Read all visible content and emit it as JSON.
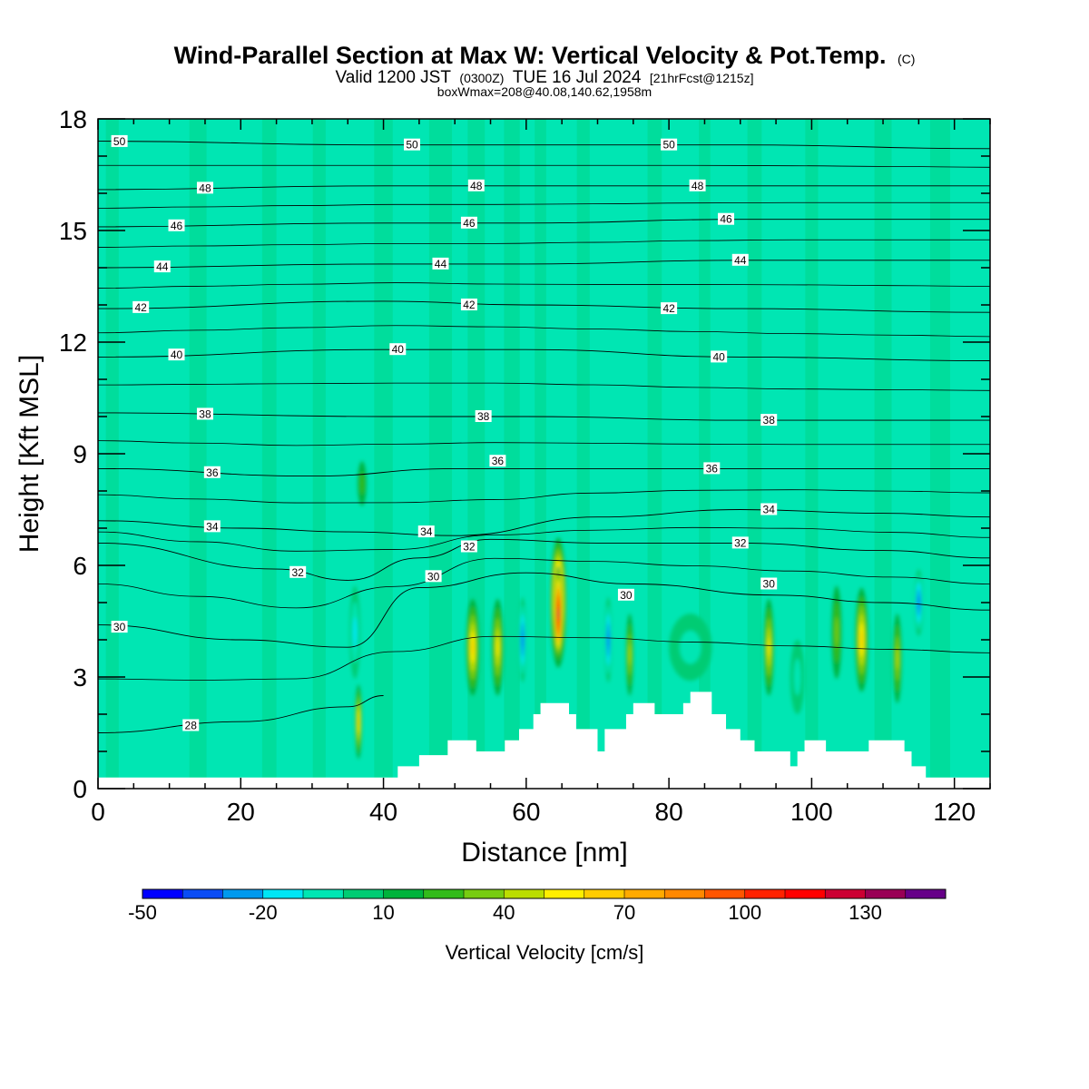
{
  "header": {
    "title": "Wind-Parallel Section at Max W: Vertical Velocity & Pot.Temp.",
    "title_mark": "(C)",
    "valid_prefix": "Valid 1200 JST",
    "valid_utc": "(0300Z)",
    "valid_date": "TUE 16 Jul 2024",
    "forecast": "[21hrFcst@1215z]",
    "box_info": "boxWmax=208@40.08,140.62,1958m"
  },
  "chart_data": {
    "type": "heatmap",
    "xlabel": "Distance [nm]",
    "ylabel": "Height [Kft MSL]",
    "xlim": [
      0,
      125
    ],
    "ylim": [
      0,
      18
    ],
    "x_ticks": [
      "0",
      "20",
      "40",
      "60",
      "80",
      "100",
      "120"
    ],
    "y_ticks": [
      "0",
      "3",
      "6",
      "9",
      "12",
      "15",
      "18"
    ],
    "background_color": "#00e6b3",
    "terrain_kft": [
      [
        0,
        0.3
      ],
      [
        36,
        0.3
      ],
      [
        40,
        0.3
      ],
      [
        42,
        0.3
      ],
      [
        42,
        0.6
      ],
      [
        45,
        0.6
      ],
      [
        45,
        0.9
      ],
      [
        49,
        0.9
      ],
      [
        49,
        1.3
      ],
      [
        53,
        1.3
      ],
      [
        53,
        1.0
      ],
      [
        57,
        1.0
      ],
      [
        57,
        1.3
      ],
      [
        59,
        1.3
      ],
      [
        59,
        1.6
      ],
      [
        61,
        1.6
      ],
      [
        61,
        2.0
      ],
      [
        62,
        2.0
      ],
      [
        62,
        2.3
      ],
      [
        66,
        2.3
      ],
      [
        66,
        2.0
      ],
      [
        67,
        2.0
      ],
      [
        67,
        1.6
      ],
      [
        70,
        1.6
      ],
      [
        70,
        1.0
      ],
      [
        71,
        1.0
      ],
      [
        71,
        1.6
      ],
      [
        74,
        1.6
      ],
      [
        74,
        2.0
      ],
      [
        75,
        2.0
      ],
      [
        75,
        2.3
      ],
      [
        78,
        2.3
      ],
      [
        78,
        2.0
      ],
      [
        82,
        2.0
      ],
      [
        82,
        2.3
      ],
      [
        83,
        2.3
      ],
      [
        83,
        2.6
      ],
      [
        86,
        2.6
      ],
      [
        86,
        2.0
      ],
      [
        88,
        2.0
      ],
      [
        88,
        1.6
      ],
      [
        90,
        1.6
      ],
      [
        90,
        1.3
      ],
      [
        92,
        1.3
      ],
      [
        92,
        1.0
      ],
      [
        97,
        1.0
      ],
      [
        97,
        0.6
      ],
      [
        98,
        0.6
      ],
      [
        98,
        1.0
      ],
      [
        99,
        1.0
      ],
      [
        99,
        1.3
      ],
      [
        102,
        1.3
      ],
      [
        102,
        1.0
      ],
      [
        108,
        1.0
      ],
      [
        108,
        1.3
      ],
      [
        113,
        1.3
      ],
      [
        113,
        1.0
      ],
      [
        114,
        1.0
      ],
      [
        114,
        0.6
      ],
      [
        116,
        0.6
      ],
      [
        116,
        0.3
      ],
      [
        125,
        0.3
      ]
    ],
    "velocity_features": [
      {
        "x": 64.5,
        "y": 5.0,
        "w": 2.2,
        "h": 3.5,
        "w_cms": 100
      },
      {
        "x": 64.5,
        "y": 4.7,
        "w": 1.2,
        "h": 2.6,
        "w_cms": 120
      },
      {
        "x": 52.5,
        "y": 3.8,
        "w": 1.8,
        "h": 2.6,
        "w_cms": 45
      },
      {
        "x": 56.0,
        "y": 3.8,
        "w": 1.6,
        "h": 2.6,
        "w_cms": 40
      },
      {
        "x": 107.0,
        "y": 4.0,
        "w": 1.8,
        "h": 2.8,
        "w_cms": 50
      },
      {
        "x": 103.5,
        "y": 4.2,
        "w": 1.4,
        "h": 2.5,
        "w_cms": 20
      },
      {
        "x": 94.0,
        "y": 3.8,
        "w": 1.4,
        "h": 2.6,
        "w_cms": 40
      },
      {
        "x": 112.0,
        "y": 3.5,
        "w": 1.2,
        "h": 2.4,
        "w_cms": 30
      },
      {
        "x": 74.5,
        "y": 3.6,
        "w": 1.0,
        "h": 2.2,
        "w_cms": 25
      },
      {
        "x": 36.5,
        "y": 1.8,
        "w": 0.9,
        "h": 2.0,
        "w_cms": 45
      },
      {
        "x": 59.5,
        "y": 4.0,
        "w": 1.0,
        "h": 2.3,
        "w_cms": -40
      },
      {
        "x": 71.5,
        "y": 4.0,
        "w": 1.0,
        "h": 2.3,
        "w_cms": -40
      },
      {
        "x": 115.0,
        "y": 5.0,
        "w": 1.2,
        "h": 1.8,
        "w_cms": -35
      },
      {
        "x": 36.0,
        "y": 4.2,
        "w": 1.5,
        "h": 2.5,
        "w_cms": -15
      },
      {
        "x": 83.0,
        "y": 3.8,
        "w": 6.0,
        "h": 1.8,
        "w_cms": -12
      },
      {
        "x": 98.0,
        "y": 3.0,
        "w": 2.0,
        "h": 2.0,
        "w_cms": -12
      },
      {
        "x": 37.0,
        "y": 8.2,
        "w": 1.2,
        "h": 1.2,
        "w_cms": 10
      }
    ],
    "theta_contours": [
      {
        "label": "28",
        "pts": [
          [
            0,
            1.5
          ],
          [
            20,
            1.8
          ],
          [
            35,
            2.2
          ],
          [
            40,
            2.5
          ]
        ],
        "label_x": 13
      },
      {
        "label": "30",
        "pts": [
          [
            0,
            4.4
          ],
          [
            20,
            4.0
          ],
          [
            35,
            3.8
          ],
          [
            45,
            5.4
          ],
          [
            60,
            5.8
          ],
          [
            75,
            5.5
          ],
          [
            95,
            5.2
          ],
          [
            110,
            5.0
          ],
          [
            125,
            4.8
          ]
        ],
        "label_x": 3
      },
      {
        "label": "32",
        "pts": [
          [
            0,
            6.6
          ],
          [
            25,
            5.9
          ],
          [
            35,
            5.6
          ],
          [
            45,
            6.2
          ],
          [
            55,
            6.7
          ],
          [
            70,
            6.6
          ],
          [
            90,
            6.6
          ],
          [
            110,
            6.4
          ],
          [
            125,
            6.2
          ]
        ],
        "label_x": 28
      },
      {
        "label": "34",
        "pts": [
          [
            0,
            7.2
          ],
          [
            20,
            7.0
          ],
          [
            35,
            6.9
          ],
          [
            50,
            6.8
          ],
          [
            70,
            7.3
          ],
          [
            90,
            7.5
          ],
          [
            110,
            7.4
          ],
          [
            125,
            7.3
          ]
        ],
        "label_x": 16
      },
      {
        "label": "36",
        "pts": [
          [
            0,
            8.6
          ],
          [
            30,
            8.4
          ],
          [
            50,
            8.6
          ],
          [
            70,
            8.6
          ],
          [
            90,
            8.6
          ],
          [
            110,
            8.6
          ],
          [
            125,
            8.6
          ]
        ],
        "label_x": 16
      },
      {
        "label": "38",
        "pts": [
          [
            0,
            10.1
          ],
          [
            40,
            10.0
          ],
          [
            60,
            10.0
          ],
          [
            90,
            9.9
          ],
          [
            125,
            9.9
          ]
        ],
        "label_x": 15
      },
      {
        "label": "40",
        "pts": [
          [
            0,
            11.6
          ],
          [
            40,
            11.8
          ],
          [
            60,
            11.8
          ],
          [
            90,
            11.6
          ],
          [
            125,
            11.5
          ]
        ],
        "label_x": 11
      },
      {
        "label": "42",
        "pts": [
          [
            0,
            12.9
          ],
          [
            40,
            13.1
          ],
          [
            60,
            13.0
          ],
          [
            90,
            12.9
          ],
          [
            125,
            12.8
          ]
        ],
        "label_x": 6
      },
      {
        "label": "44",
        "pts": [
          [
            0,
            14.0
          ],
          [
            40,
            14.1
          ],
          [
            60,
            14.1
          ],
          [
            90,
            14.2
          ],
          [
            125,
            14.2
          ]
        ],
        "label_x": 9
      },
      {
        "label": "46",
        "pts": [
          [
            0,
            15.1
          ],
          [
            40,
            15.2
          ],
          [
            60,
            15.2
          ],
          [
            90,
            15.3
          ],
          [
            125,
            15.3
          ]
        ],
        "label_x": 11
      },
      {
        "label": "48",
        "pts": [
          [
            0,
            16.1
          ],
          [
            40,
            16.2
          ],
          [
            60,
            16.2
          ],
          [
            90,
            16.2
          ],
          [
            125,
            16.2
          ]
        ],
        "label_x": 15
      },
      {
        "label": "50",
        "pts": [
          [
            0,
            17.4
          ],
          [
            40,
            17.3
          ],
          [
            60,
            17.3
          ],
          [
            90,
            17.3
          ],
          [
            125,
            17.2
          ]
        ],
        "label_x": 3
      }
    ],
    "extra_labels": [
      {
        "label": "50",
        "x": 44,
        "y": 17.3
      },
      {
        "label": "50",
        "x": 80,
        "y": 17.3
      },
      {
        "label": "48",
        "x": 53,
        "y": 16.2
      },
      {
        "label": "48",
        "x": 84,
        "y": 16.2
      },
      {
        "label": "46",
        "x": 52,
        "y": 15.2
      },
      {
        "label": "46",
        "x": 88,
        "y": 15.3
      },
      {
        "label": "44",
        "x": 48,
        "y": 14.1
      },
      {
        "label": "44",
        "x": 90,
        "y": 14.2
      },
      {
        "label": "42",
        "x": 52,
        "y": 13.0
      },
      {
        "label": "42",
        "x": 80,
        "y": 12.9
      },
      {
        "label": "40",
        "x": 42,
        "y": 11.8
      },
      {
        "label": "40",
        "x": 87,
        "y": 11.6
      },
      {
        "label": "38",
        "x": 54,
        "y": 10.0
      },
      {
        "label": "38",
        "x": 94,
        "y": 9.9
      },
      {
        "label": "36",
        "x": 56,
        "y": 8.8
      },
      {
        "label": "36",
        "x": 86,
        "y": 8.6
      },
      {
        "label": "34",
        "x": 46,
        "y": 6.9
      },
      {
        "label": "34",
        "x": 94,
        "y": 7.5
      },
      {
        "label": "32",
        "x": 52,
        "y": 6.5
      },
      {
        "label": "32",
        "x": 90,
        "y": 6.6
      },
      {
        "label": "30",
        "x": 47,
        "y": 5.7
      },
      {
        "label": "30",
        "x": 74,
        "y": 5.2
      },
      {
        "label": "30",
        "x": 94,
        "y": 5.5
      }
    ]
  },
  "colorbar": {
    "title": "Vertical Velocity [cm/s]",
    "tick_labels": [
      "-50",
      "-20",
      "10",
      "40",
      "70",
      "100",
      "130"
    ],
    "colors": [
      "#0000ff",
      "#0a4cf5",
      "#0099ee",
      "#00e6f5",
      "#00e6b3",
      "#00cc73",
      "#00b33c",
      "#33bb1a",
      "#77cc11",
      "#bbdd00",
      "#ffee00",
      "#ffcc00",
      "#ffaa00",
      "#ff8800",
      "#ff5500",
      "#ff2200",
      "#ff0000",
      "#cc0033",
      "#990055",
      "#660088"
    ]
  }
}
